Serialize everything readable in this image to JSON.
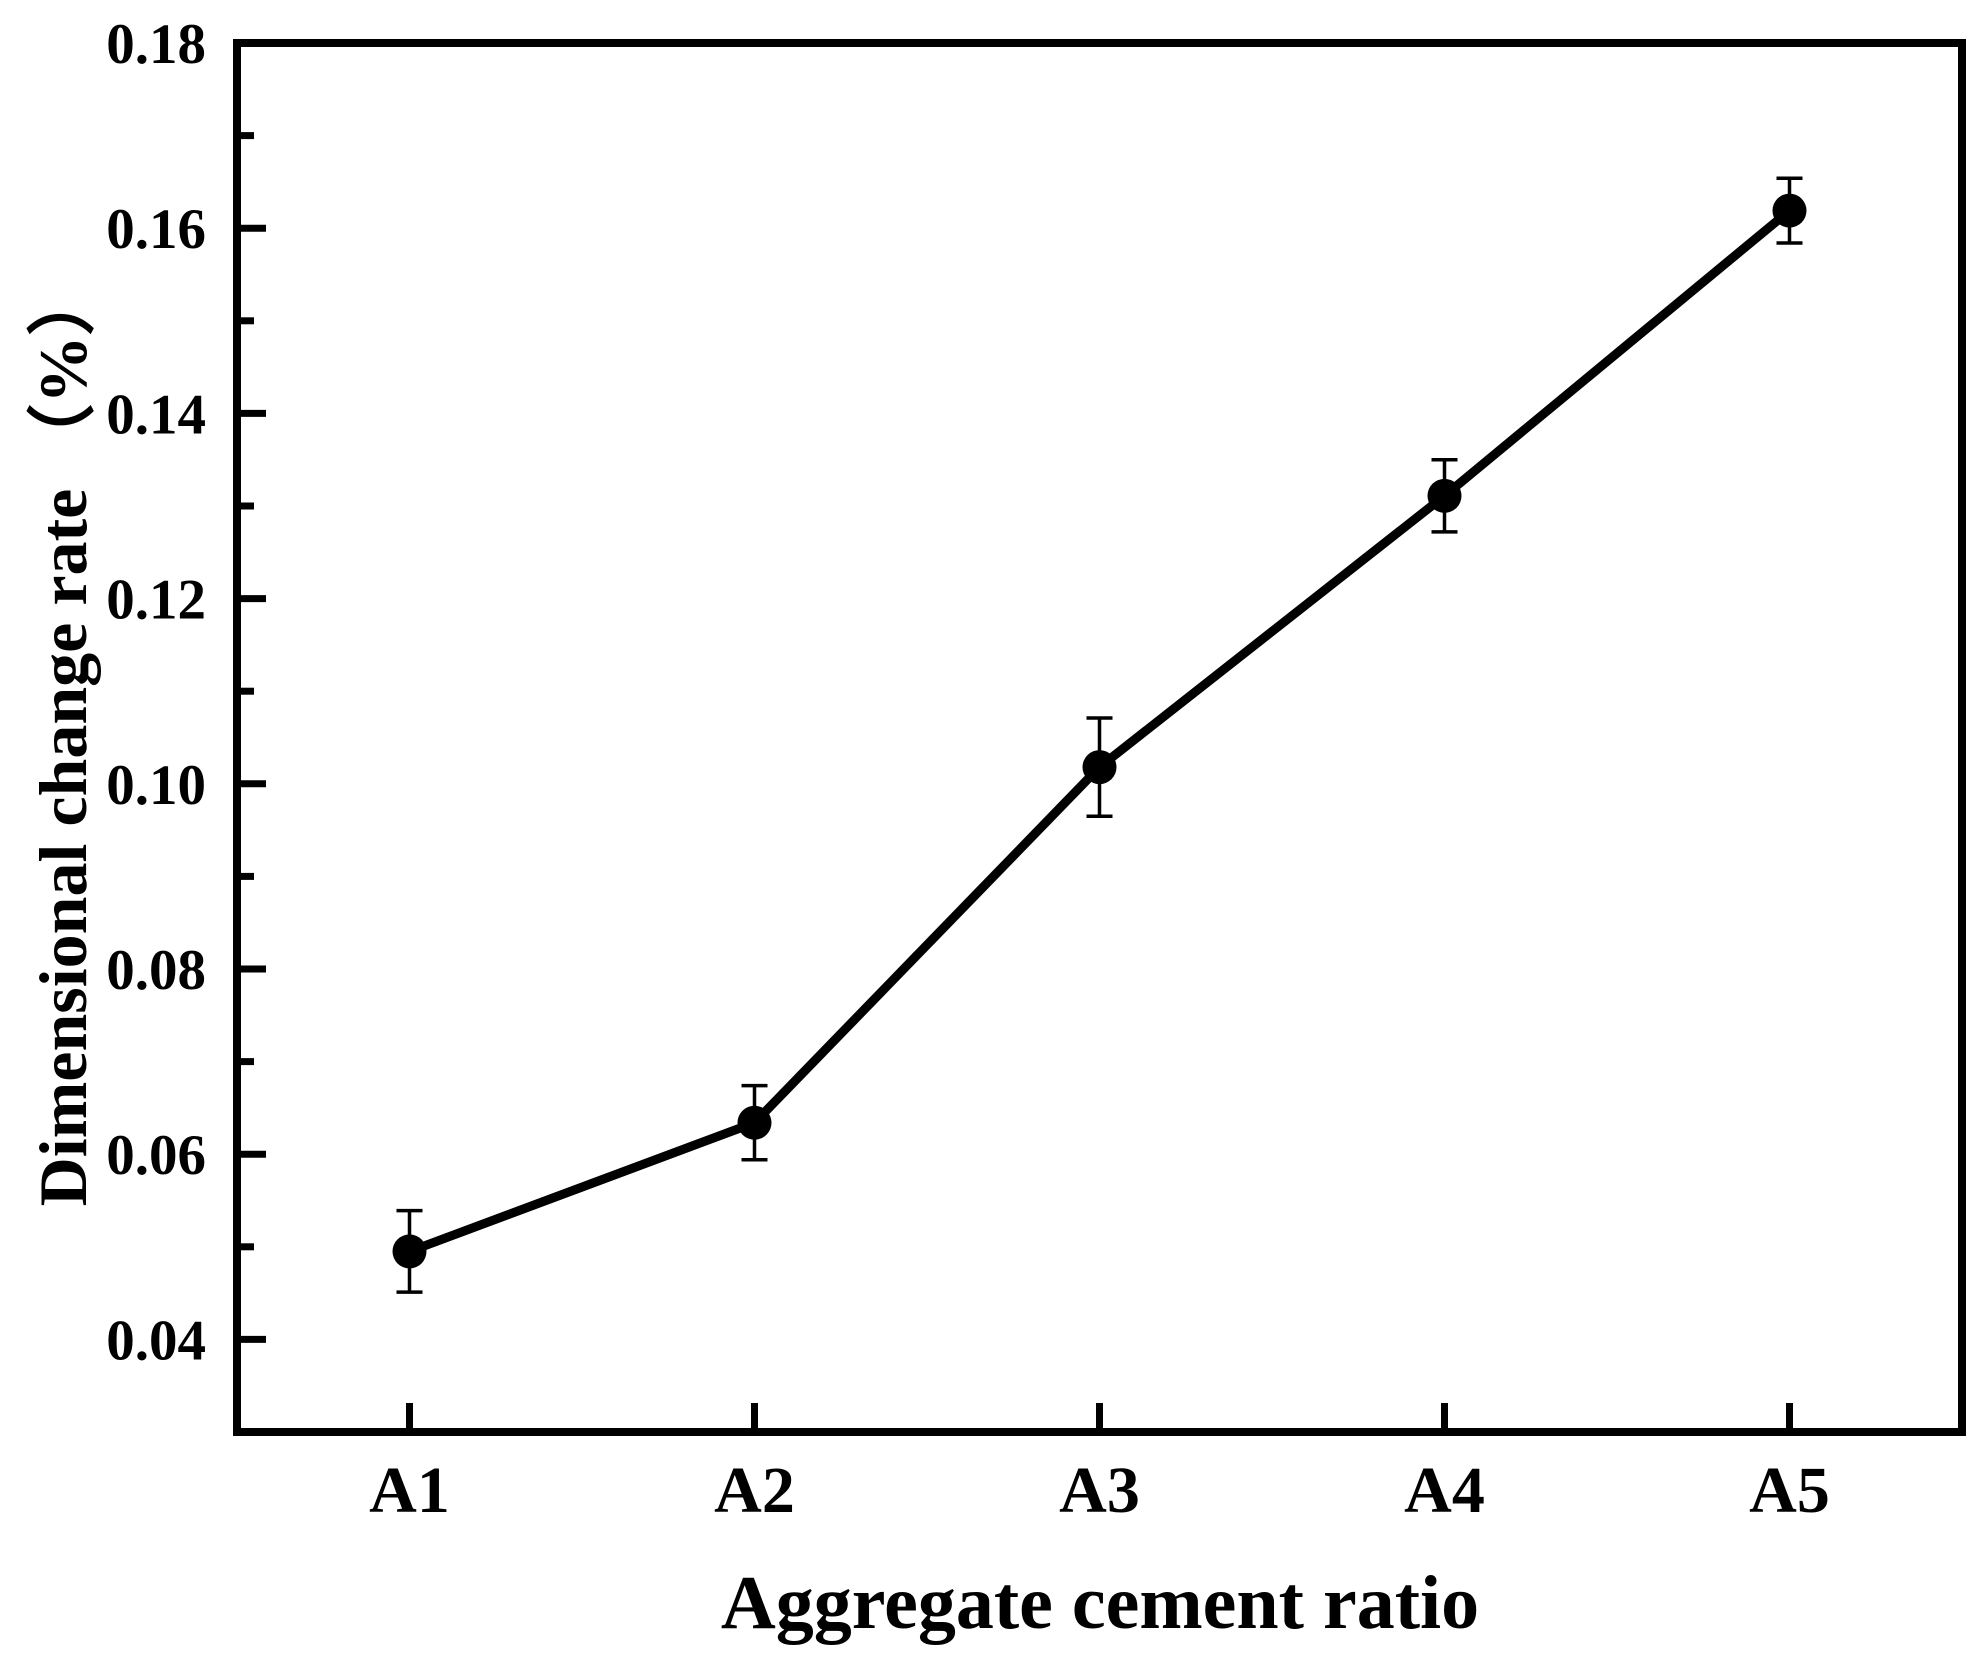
{
  "figure": {
    "background": "#ffffff",
    "series_color": "#000000"
  },
  "chart_data": {
    "type": "line",
    "title": "",
    "categories": [
      "A1",
      "A2",
      "A3",
      "A4",
      "A5"
    ],
    "values": [
      0.0495,
      0.0634,
      0.1018,
      0.1311,
      0.1619
    ],
    "errors": [
      0.0044,
      0.004,
      0.0053,
      0.0039,
      0.0035
    ],
    "series": [
      {
        "name": "Dimensional change rate",
        "marker": "filled-circle",
        "color": "#000000",
        "values": [
          0.0495,
          0.0634,
          0.1018,
          0.1311,
          0.1619
        ]
      }
    ],
    "xlabel": "Aggregate cement ratio",
    "ylabel": "Dimensional change rate （%）",
    "ylim": [
      0.03,
      0.18
    ],
    "y_major_tick_labels": [
      "0.18",
      "0.16",
      "0.14",
      "0.12",
      "0.10",
      "0.08",
      "0.06",
      "0.04"
    ],
    "y_minor_ticks": [
      0.17,
      0.15,
      0.13,
      0.11,
      0.09,
      0.07,
      0.05
    ],
    "grid": "off",
    "legend": "none",
    "error_bars": "vertical-with-caps",
    "tick_direction": "in"
  }
}
